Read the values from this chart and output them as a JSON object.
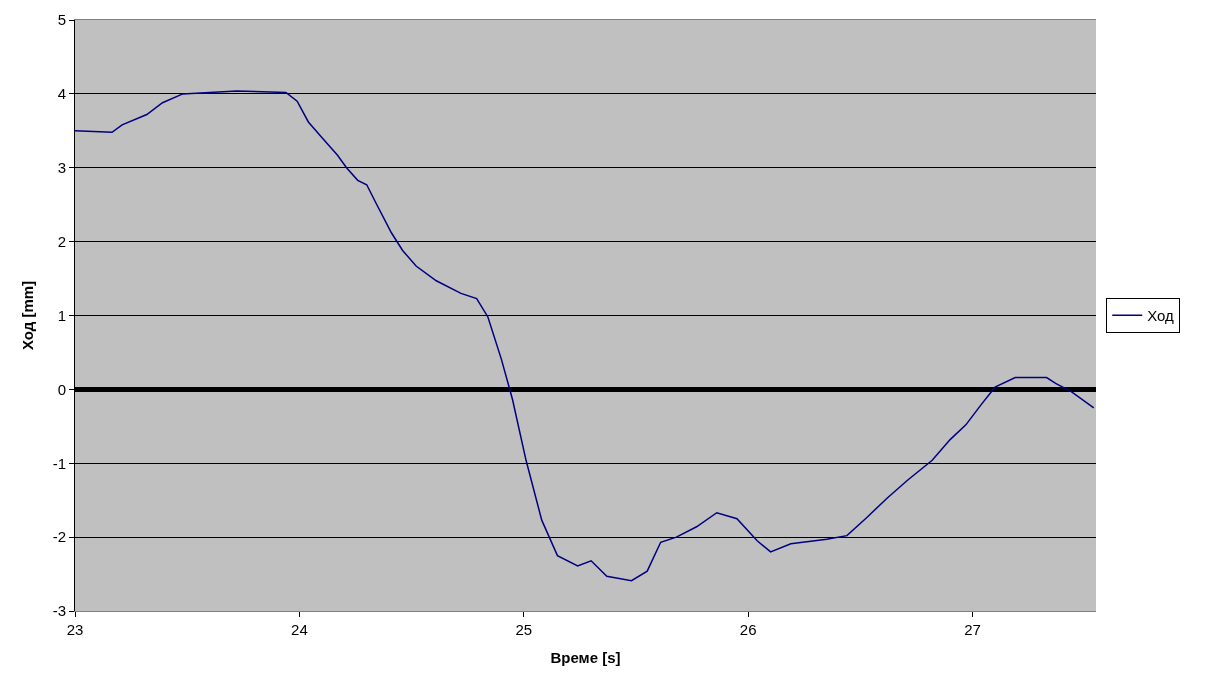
{
  "chart_data": {
    "type": "line",
    "xlabel": "Време [s]",
    "ylabel": "Ход [mm]",
    "x": [
      23.0,
      23.165,
      23.21,
      23.32,
      23.39,
      23.48,
      23.72,
      23.94,
      23.99,
      24.04,
      24.1,
      24.17,
      24.21,
      24.26,
      24.3,
      24.34,
      24.41,
      24.46,
      24.52,
      24.61,
      24.72,
      24.79,
      24.84,
      24.9,
      24.95,
      25.01,
      25.08,
      25.15,
      25.24,
      25.3,
      25.37,
      25.48,
      25.55,
      25.61,
      25.68,
      25.77,
      25.86,
      25.95,
      26.04,
      26.1,
      26.19,
      26.35,
      26.44,
      26.53,
      26.62,
      26.71,
      26.82,
      26.9,
      26.97,
      27.04,
      27.1,
      27.19,
      27.33,
      27.37,
      27.44,
      27.54
    ],
    "series": [
      {
        "name": "Ход",
        "color": "#000080",
        "values": [
          3.5,
          3.48,
          3.58,
          3.72,
          3.88,
          4.0,
          4.04,
          4.02,
          3.9,
          3.62,
          3.41,
          3.17,
          3.0,
          2.83,
          2.77,
          2.53,
          2.12,
          1.88,
          1.67,
          1.47,
          1.3,
          1.23,
          0.98,
          0.41,
          -0.14,
          -0.96,
          -1.77,
          -2.25,
          -2.39,
          -2.32,
          -2.53,
          -2.59,
          -2.46,
          -2.07,
          -2.0,
          -1.86,
          -1.67,
          -1.75,
          -2.05,
          -2.2,
          -2.09,
          -2.03,
          -1.98,
          -1.73,
          -1.47,
          -1.23,
          -0.96,
          -0.68,
          -0.48,
          -0.2,
          0.03,
          0.16,
          0.16,
          0.08,
          -0.03,
          -0.25
        ]
      }
    ],
    "xlim": [
      23,
      27.55
    ],
    "xticks": [
      23,
      24,
      25,
      26,
      27
    ],
    "ylim": [
      -3,
      5
    ],
    "yticks": [
      -3,
      -2,
      -1,
      0,
      1,
      2,
      3,
      4,
      5
    ],
    "grid": "y",
    "legend": "right",
    "marker": "none",
    "line_style": "solid",
    "ref_lines": [
      {
        "axis": "y",
        "value": 0,
        "color": "#000000"
      }
    ]
  }
}
